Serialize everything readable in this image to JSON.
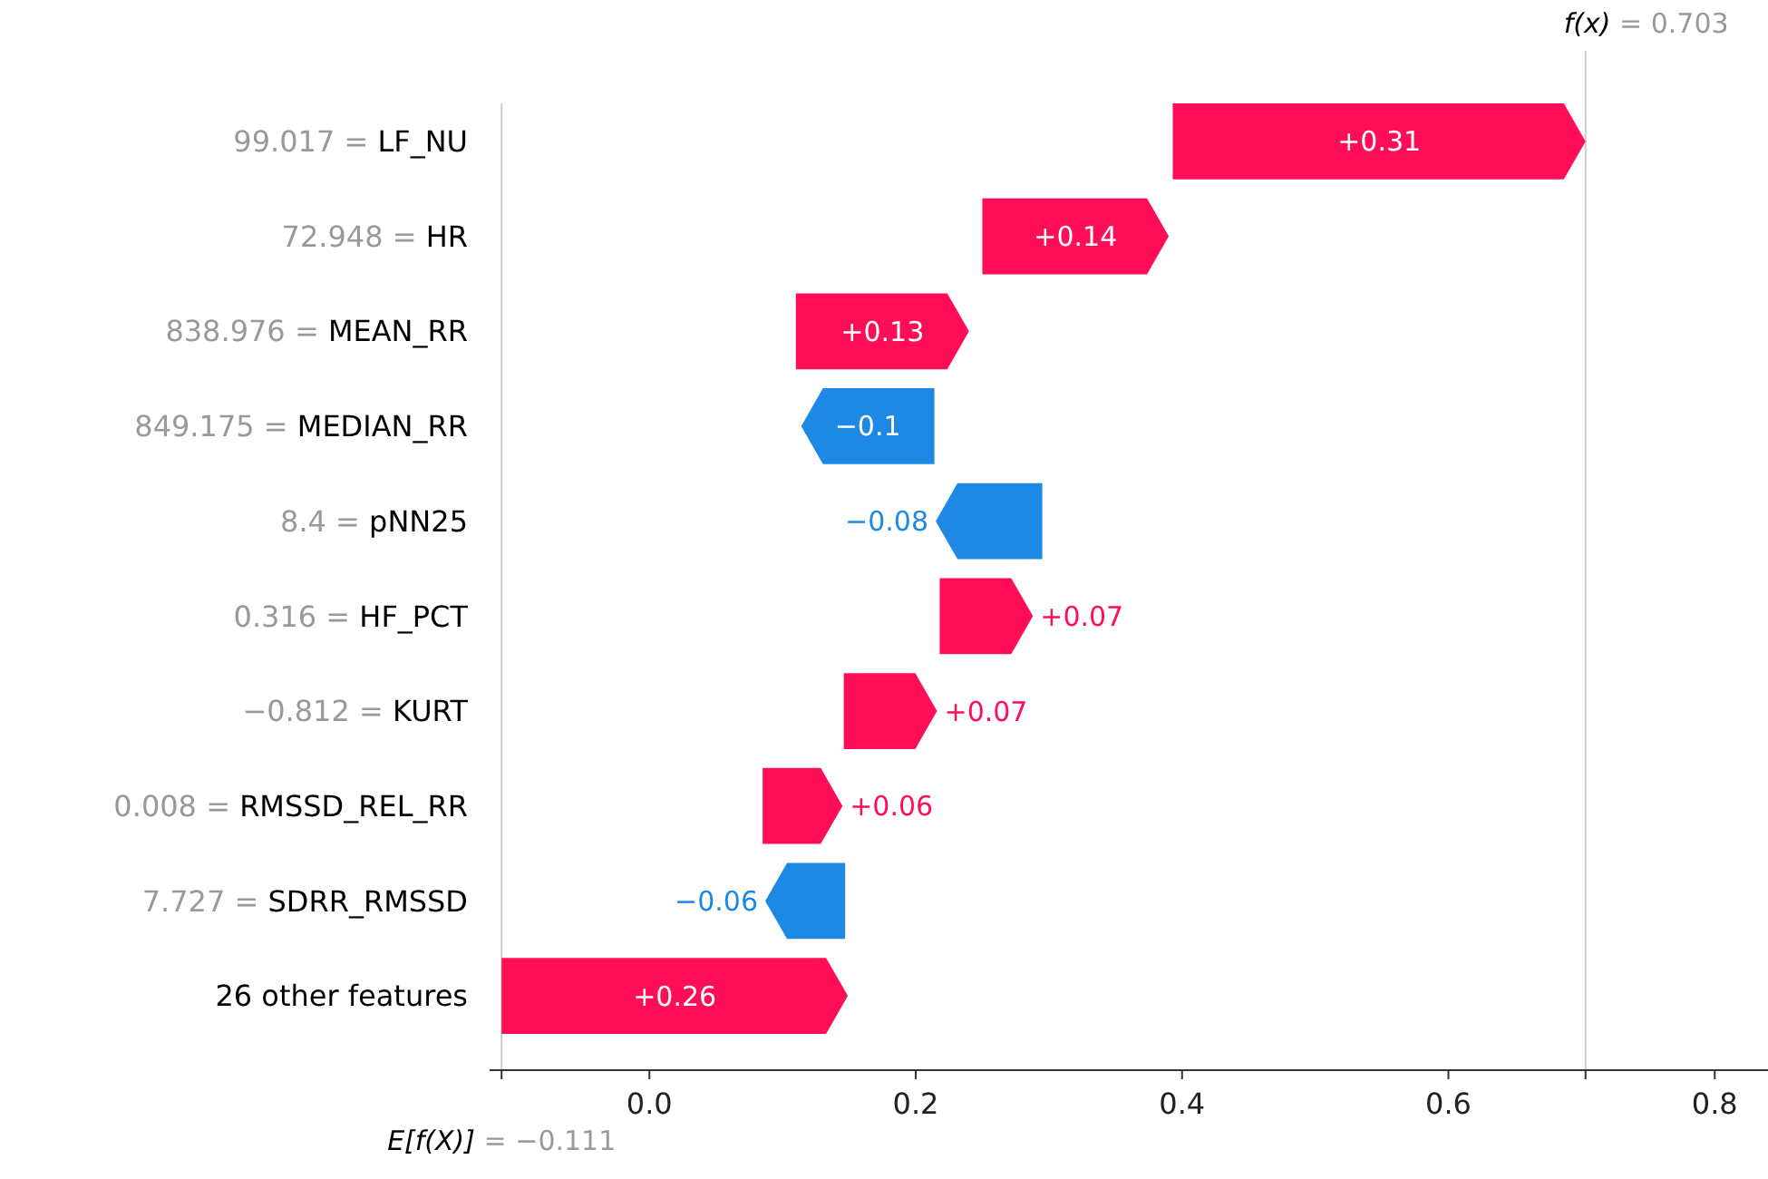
{
  "chart_data": {
    "type": "bar",
    "orientation": "horizontal",
    "categories": [
      "99.017 = LF_NU",
      "72.948 = HR",
      "838.976 = MEAN_RR",
      "849.175 = MEDIAN_RR",
      "8.4 = pNN25",
      "0.316 = HF_PCT",
      "−0.812 = KURT",
      "0.008 = RMSSD_REL_RR",
      "7.727 = SDRR_RMSSD",
      "26 other features"
    ],
    "values": [
      0.31,
      0.14,
      0.13,
      -0.1,
      -0.08,
      0.07,
      0.07,
      0.06,
      -0.06,
      0.26
    ],
    "base": [
      0.393,
      0.25,
      0.11,
      0.214,
      0.295,
      0.218,
      0.146,
      0.085,
      0.147,
      -0.111
    ],
    "colors": [
      "#ff0d57",
      "#ff0d57",
      "#ff0d57",
      "#1e88e5",
      "#1e88e5",
      "#ff0d57",
      "#ff0d57",
      "#ff0d57",
      "#1e88e5",
      "#ff0d57"
    ],
    "value_labels": [
      "+0.31",
      "+0.14",
      "+0.13",
      "−0.1",
      "−0.08",
      "+0.07",
      "+0.07",
      "+0.06",
      "−0.06",
      "+0.26"
    ],
    "xlim": [
      -0.12,
      0.84
    ],
    "xticks": [
      {
        "value": 0,
        "label": "0.0"
      },
      {
        "value": 0.2,
        "label": "0.2"
      },
      {
        "value": 0.4,
        "label": "0.4"
      },
      {
        "value": 0.6,
        "label": "0.6"
      },
      {
        "value": 0.8,
        "label": "0.8"
      }
    ],
    "ref_lines": [
      {
        "axis": "x",
        "value": 0.703,
        "label": "f(x) = 0.703",
        "color": "#cccccc"
      },
      {
        "axis": "x",
        "value": -0.111,
        "label": "E[f(X)] = −0.111",
        "color": "#cccccc"
      }
    ]
  }
}
